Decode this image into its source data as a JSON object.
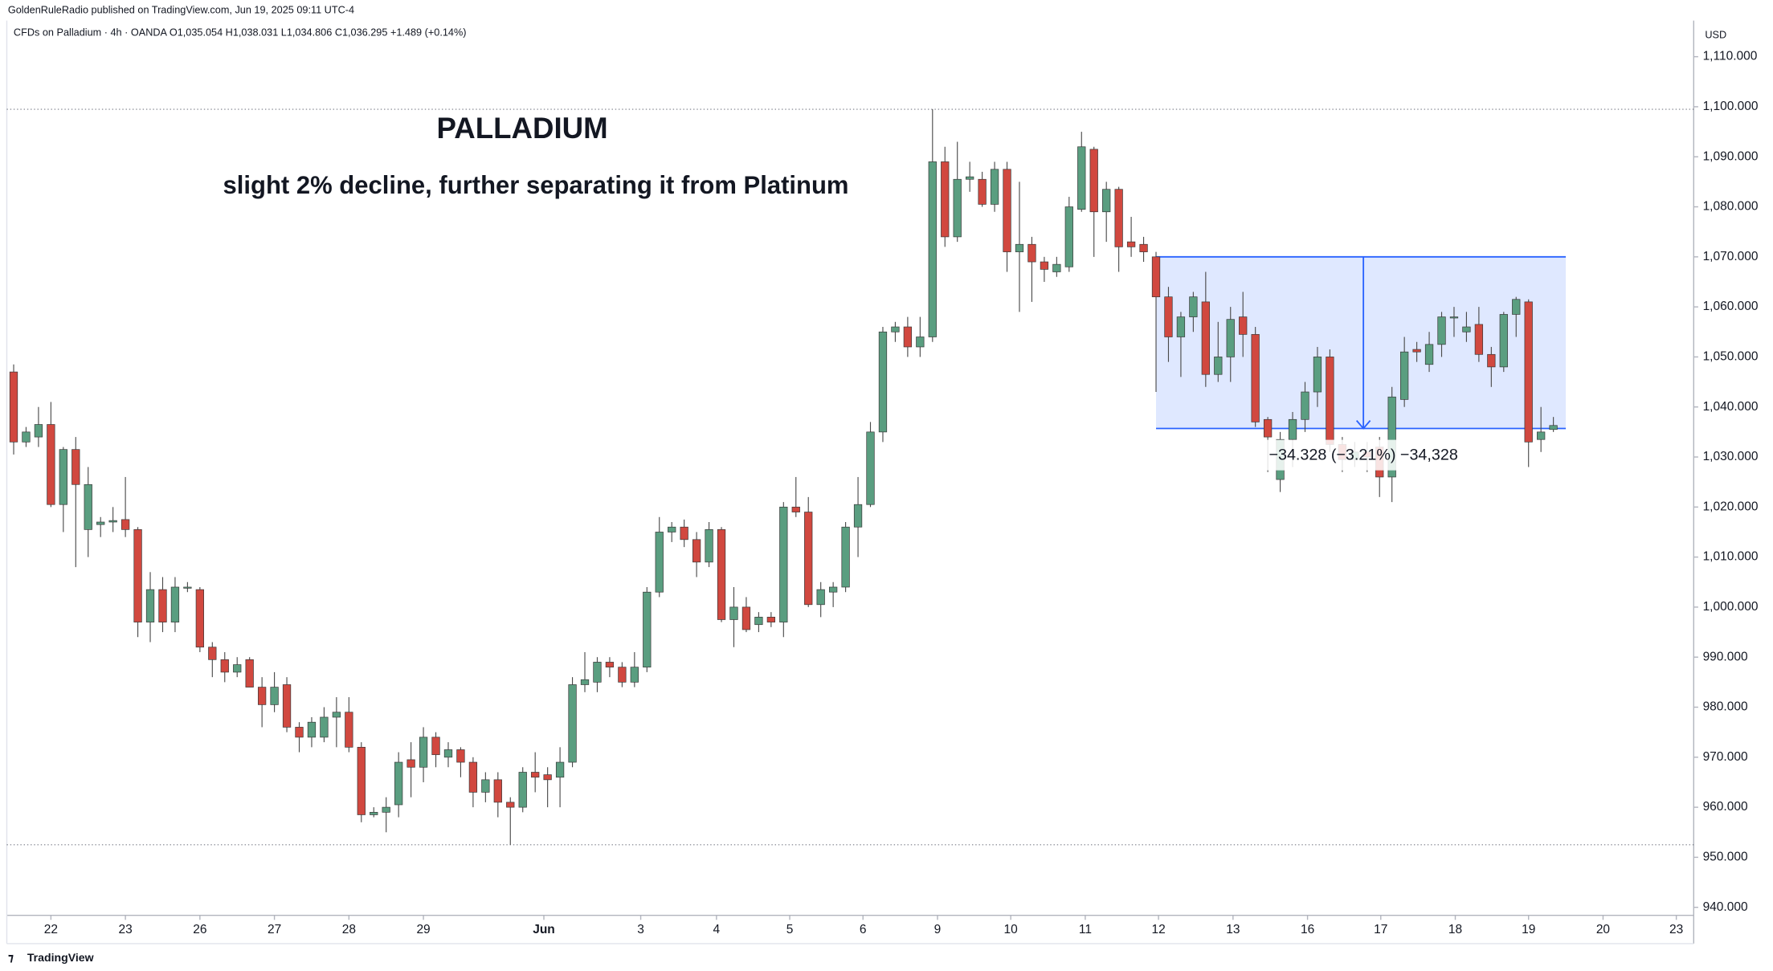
{
  "chart_data": {
    "type": "candlestick",
    "header": "GoldenRuleRadio published on TradingView.com, Jun 19, 2025 09:11 UTC-4",
    "legend": "CFDs on Palladium · 4h · OANDA  O1,035.054  H1,038.031  L1,034.806  C1,036.295  +1.489 (+0.14%)",
    "title": "PALLADIUM",
    "subtitle": "slight 2% decline, further separating it from Platinum",
    "y_unit": "USD",
    "footer": "TradingView",
    "up_color": "#5a9e80",
    "down_color": "#d1483f",
    "candles": {
      "open": [
        1047,
        1033,
        1034,
        1036.5,
        1020.5,
        1031.5,
        1015.5,
        1016.5,
        1017,
        1017.5,
        1015.5,
        997,
        1003.5,
        997,
        1004,
        1003.5,
        992,
        989.5,
        987,
        989.5,
        984,
        980.5,
        984.5,
        976,
        974,
        974,
        978,
        979,
        972,
        958.5,
        959,
        960.5,
        969.5,
        968,
        974,
        970,
        971.5,
        969,
        963,
        965.5,
        961,
        960,
        967,
        966.5,
        966,
        969,
        984.5,
        985,
        989,
        988,
        985,
        988,
        1003,
        1015,
        1016,
        1013.5,
        1009,
        1015.5,
        997.5,
        1000,
        996.5,
        998,
        997,
        1020,
        1019,
        1000.5,
        1003,
        1004,
        1016,
        1020.5,
        1035,
        1055,
        1056,
        1052,
        1054,
        1089,
        1074,
        1085.5,
        1085.5,
        1080.5,
        1087.5,
        1071,
        1072.5,
        1069,
        1067,
        1068,
        1079.5,
        1091.5,
        1079,
        1083.5,
        1073,
        1072.5,
        1070,
        1062,
        1054,
        1058,
        1061,
        1046.5,
        1050,
        1058,
        1054.5,
        1037.5,
        1025.5,
        1033.5,
        1037.5,
        1043,
        1050,
        1032.5,
        1029.5,
        1031,
        1032,
        1026,
        1041.5,
        1051.5,
        1048.5,
        1052.5,
        1058,
        1055,
        1056.5,
        1050.5,
        1048,
        1058.5,
        1061,
        1033.5,
        1035.5
      ],
      "high": [
        1048.5,
        1036,
        1040,
        1041,
        1032,
        1034,
        1028,
        1018,
        1020,
        1026,
        1016,
        1007,
        1006,
        1006,
        1005,
        1004,
        993,
        991,
        990,
        990,
        986,
        987,
        986,
        977,
        978,
        980,
        982,
        982,
        973,
        960,
        962,
        971,
        973,
        976,
        975,
        973,
        972,
        970,
        967,
        967,
        962,
        968,
        971,
        968,
        972,
        986,
        991,
        990,
        990,
        989,
        991,
        1004,
        1018,
        1017,
        1017.5,
        1015,
        1017,
        1016,
        1004,
        1002,
        999,
        999,
        1021,
        1026,
        1022,
        1005,
        1005,
        1017,
        1026,
        1037,
        1056,
        1057,
        1058,
        1058,
        1099.5,
        1092,
        1093,
        1089,
        1087,
        1089,
        1089,
        1085,
        1074,
        1070,
        1070,
        1082,
        1095,
        1092,
        1085,
        1084,
        1078,
        1074,
        1071,
        1064,
        1059,
        1063,
        1067,
        1057,
        1060,
        1063,
        1056,
        1038,
        1035,
        1039,
        1045,
        1052,
        1051.5,
        1034,
        1033,
        1033,
        1034,
        1044,
        1054,
        1053,
        1055,
        1059,
        1060,
        1059,
        1060,
        1052,
        1059,
        1062,
        1061.5,
        1040,
        1038
      ],
      "low": [
        1030.5,
        1032,
        1032,
        1020,
        1015,
        1008,
        1010,
        1014,
        1015,
        1014,
        994,
        993,
        995,
        995,
        1003,
        991,
        986,
        985,
        986,
        984,
        976,
        979,
        975,
        971,
        972,
        973,
        972,
        971,
        957,
        958,
        955,
        958,
        962,
        965,
        968,
        968,
        966,
        960,
        961,
        958,
        952.5,
        959,
        963,
        960,
        960,
        968,
        983,
        983,
        986,
        984,
        984,
        987,
        1002,
        1013,
        1012,
        1006,
        1008,
        997,
        992,
        995,
        995,
        996,
        994,
        1018,
        1000,
        998,
        1000,
        1003,
        1010,
        1020,
        1033,
        1053,
        1050,
        1050,
        1053,
        1072,
        1073,
        1083,
        1080,
        1079,
        1067,
        1059,
        1061,
        1065,
        1066,
        1067,
        1079,
        1070,
        1073,
        1067,
        1070,
        1069,
        1043,
        1049,
        1046,
        1055,
        1044,
        1045,
        1045,
        1050,
        1036,
        1027,
        1023,
        1028,
        1035,
        1040,
        1031,
        1027,
        1028,
        1027,
        1022,
        1021,
        1040,
        1049,
        1047,
        1050,
        1054,
        1053,
        1049,
        1044,
        1047,
        1054,
        1028,
        1031,
        1035
      ],
      "close": [
        1033,
        1035,
        1036.5,
        1020.5,
        1031.5,
        1024.5,
        1024.5,
        1017,
        1017.3,
        1015.5,
        997,
        1003.5,
        997,
        1004,
        1004,
        992,
        989.5,
        987,
        988.5,
        984,
        980.5,
        984,
        976,
        974,
        977,
        978,
        979,
        972,
        958.5,
        959,
        960,
        969,
        968,
        974,
        970.5,
        971.5,
        969,
        963,
        965.5,
        961,
        960,
        967,
        966,
        965.5,
        969,
        984.5,
        985.5,
        989,
        988,
        985,
        988,
        1003,
        1015,
        1016,
        1013.5,
        1009,
        1015.5,
        997.5,
        1000,
        995.5,
        998,
        997,
        1020,
        1019,
        1000.5,
        1003.5,
        1004,
        1016,
        1020.5,
        1035,
        1055,
        1056,
        1052,
        1054,
        1089,
        1074,
        1085.5,
        1086,
        1080.5,
        1087.5,
        1071,
        1072.5,
        1069,
        1067.5,
        1068.5,
        1080,
        1092,
        1079,
        1083.5,
        1072,
        1072,
        1071,
        1062,
        1054,
        1058,
        1062,
        1046.5,
        1050,
        1057.5,
        1054.5,
        1037,
        1034,
        1033.5,
        1037.5,
        1043,
        1050,
        1032.5,
        1029.5,
        1031,
        1030,
        1026,
        1042,
        1051,
        1051,
        1052.5,
        1058,
        1058,
        1056,
        1050.5,
        1048,
        1058.5,
        1061.5,
        1033,
        1035,
        1036.3
      ]
    },
    "xlim": [
      -1.1,
      135.3
    ],
    "xticks": [
      {
        "value": 3,
        "label": "22"
      },
      {
        "value": 9,
        "label": "23"
      },
      {
        "value": 15,
        "label": "26"
      },
      {
        "value": 21,
        "label": "27"
      },
      {
        "value": 27,
        "label": "28"
      },
      {
        "value": 33,
        "label": "29"
      },
      {
        "value": 42.7,
        "label": "Jun"
      },
      {
        "value": 50.5,
        "label": "3"
      },
      {
        "value": 56.6,
        "label": "4"
      },
      {
        "value": 62.5,
        "label": "5"
      },
      {
        "value": 68.4,
        "label": "6"
      },
      {
        "value": 74.4,
        "label": "9"
      },
      {
        "value": 80.3,
        "label": "10"
      },
      {
        "value": 86.3,
        "label": "11"
      },
      {
        "value": 92.2,
        "label": "12"
      },
      {
        "value": 98.2,
        "label": "13"
      },
      {
        "value": 104.2,
        "label": "16"
      },
      {
        "value": 110.1,
        "label": "17"
      },
      {
        "value": 116.1,
        "label": "18"
      },
      {
        "value": 122,
        "label": "19"
      },
      {
        "value": 128,
        "label": "20"
      },
      {
        "value": 133.9,
        "label": "23"
      }
    ],
    "ylim": [
      938.4,
      1121.3
    ],
    "yticks": [
      {
        "value": 940,
        "label": "940.000"
      },
      {
        "value": 950,
        "label": "950.000"
      },
      {
        "value": 960,
        "label": "960.000"
      },
      {
        "value": 970,
        "label": "970.000"
      },
      {
        "value": 980,
        "label": "980.000"
      },
      {
        "value": 990,
        "label": "990.000"
      },
      {
        "value": 1000,
        "label": "1,000.000"
      },
      {
        "value": 1010,
        "label": "1,010.000"
      },
      {
        "value": 1020,
        "label": "1,020.000"
      },
      {
        "value": 1030,
        "label": "1,030.000"
      },
      {
        "value": 1040,
        "label": "1,040.000"
      },
      {
        "value": 1050,
        "label": "1,050.000"
      },
      {
        "value": 1060,
        "label": "1,060.000"
      },
      {
        "value": 1070,
        "label": "1,070.000"
      },
      {
        "value": 1080,
        "label": "1,080.000"
      },
      {
        "value": 1090,
        "label": "1,090.000"
      },
      {
        "value": 1100,
        "label": "1,100.000"
      },
      {
        "value": 1110,
        "label": "1,110.000"
      }
    ],
    "hlines": [
      1099.5,
      952.5
    ],
    "range_box": {
      "from": 92,
      "to": 125,
      "top": 1070,
      "bottom": 1035.7,
      "arrow_x": 108.7,
      "label": "−34.328 (−3.21%) −34,328"
    }
  }
}
